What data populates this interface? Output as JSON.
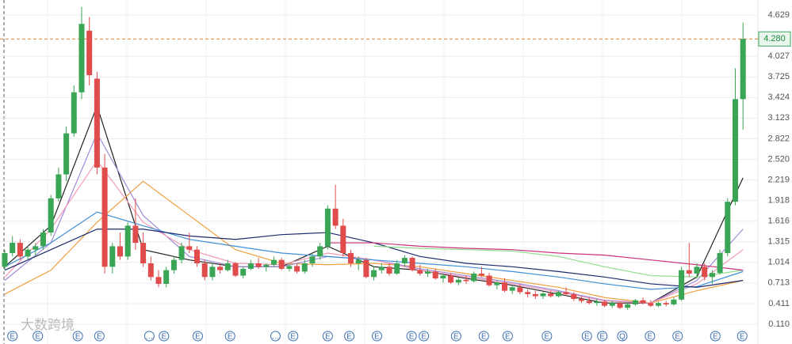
{
  "chart_data": {
    "type": "candlestick",
    "ylim": [
      -0.179,
      4.849
    ],
    "yticks": [
      4.629,
      4.027,
      3.725,
      3.424,
      3.123,
      2.822,
      {
        "value": 2.52,
        "label": "2.520"
      },
      2.219,
      1.918,
      1.616,
      1.315,
      1.014,
      0.713,
      0.411,
      {
        "value": 0.11,
        "label": "0.110"
      }
    ],
    "grid": true,
    "up_color": "#3aa655",
    "down_color": "#e04b4b",
    "last_price": {
      "value": 4.28,
      "label": "4.280"
    },
    "candles": [
      [
        0.95,
        1.2,
        0.9,
        1.15
      ],
      [
        1.15,
        1.4,
        1.1,
        1.3
      ],
      [
        1.3,
        1.35,
        1.05,
        1.1
      ],
      [
        1.1,
        1.25,
        1.05,
        1.2
      ],
      [
        1.2,
        1.3,
        1.1,
        1.25
      ],
      [
        1.25,
        1.5,
        1.2,
        1.45
      ],
      [
        1.45,
        2.0,
        1.4,
        1.95
      ],
      [
        1.95,
        2.4,
        1.9,
        2.3
      ],
      [
        2.3,
        3.0,
        2.2,
        2.9
      ],
      [
        2.9,
        3.6,
        2.85,
        3.5
      ],
      [
        3.5,
        4.75,
        3.4,
        4.5
      ],
      [
        4.4,
        4.6,
        3.6,
        3.75
      ],
      [
        3.7,
        3.8,
        2.3,
        2.4
      ],
      [
        2.4,
        2.6,
        0.85,
        0.95
      ],
      [
        0.95,
        1.3,
        0.85,
        1.25
      ],
      [
        1.25,
        1.45,
        1.05,
        1.1
      ],
      [
        1.1,
        1.6,
        1.05,
        1.55
      ],
      [
        1.55,
        1.95,
        1.2,
        1.3
      ],
      [
        1.3,
        1.45,
        0.95,
        1.0
      ],
      [
        1.0,
        1.1,
        0.75,
        0.8
      ],
      [
        0.8,
        0.9,
        0.65,
        0.7
      ],
      [
        0.7,
        0.95,
        0.65,
        0.9
      ],
      [
        0.9,
        1.1,
        0.85,
        1.05
      ],
      [
        1.05,
        1.3,
        1.0,
        1.25
      ],
      [
        1.25,
        1.45,
        1.15,
        1.2
      ],
      [
        1.2,
        1.25,
        0.95,
        1.0
      ],
      [
        1.0,
        1.05,
        0.75,
        0.8
      ],
      [
        0.8,
        1.0,
        0.75,
        0.95
      ],
      [
        0.95,
        1.0,
        0.85,
        0.9
      ],
      [
        0.9,
        1.05,
        0.88,
        1.0
      ],
      [
        1.0,
        1.02,
        0.8,
        0.82
      ],
      [
        0.82,
        0.95,
        0.78,
        0.92
      ],
      [
        0.92,
        1.05,
        0.9,
        1.0
      ],
      [
        1.0,
        1.08,
        0.92,
        0.95
      ],
      [
        0.95,
        1.0,
        0.88,
        0.98
      ],
      [
        0.98,
        1.1,
        0.95,
        1.05
      ],
      [
        1.05,
        1.08,
        0.9,
        0.92
      ],
      [
        0.92,
        1.0,
        0.88,
        0.96
      ],
      [
        0.96,
        1.0,
        0.85,
        0.88
      ],
      [
        0.88,
        1.05,
        0.85,
        1.0
      ],
      [
        1.0,
        1.15,
        0.95,
        1.1
      ],
      [
        1.1,
        1.3,
        1.05,
        1.25
      ],
      [
        1.25,
        1.85,
        1.2,
        1.8
      ],
      [
        1.8,
        2.15,
        1.5,
        1.55
      ],
      [
        1.55,
        1.65,
        1.1,
        1.15
      ],
      [
        1.15,
        1.2,
        0.95,
        1.0
      ],
      [
        1.0,
        1.1,
        0.9,
        1.05
      ],
      [
        1.05,
        1.08,
        0.78,
        0.8
      ],
      [
        0.8,
        0.95,
        0.75,
        0.9
      ],
      [
        0.9,
        1.0,
        0.85,
        0.95
      ],
      [
        0.95,
        1.0,
        0.82,
        0.85
      ],
      [
        0.85,
        1.05,
        0.83,
        1.0
      ],
      [
        1.0,
        1.12,
        0.95,
        1.08
      ],
      [
        1.08,
        1.1,
        0.88,
        0.9
      ],
      [
        0.9,
        0.98,
        0.82,
        0.85
      ],
      [
        0.85,
        0.92,
        0.8,
        0.88
      ],
      [
        0.88,
        0.92,
        0.76,
        0.78
      ],
      [
        0.78,
        0.85,
        0.72,
        0.82
      ],
      [
        0.82,
        0.86,
        0.7,
        0.72
      ],
      [
        0.72,
        0.8,
        0.68,
        0.76
      ],
      [
        0.76,
        0.82,
        0.7,
        0.74
      ],
      [
        0.74,
        0.88,
        0.72,
        0.85
      ],
      [
        0.85,
        0.95,
        0.8,
        0.82
      ],
      [
        0.82,
        0.86,
        0.66,
        0.68
      ],
      [
        0.68,
        0.75,
        0.62,
        0.72
      ],
      [
        0.72,
        0.78,
        0.58,
        0.6
      ],
      [
        0.6,
        0.68,
        0.55,
        0.65
      ],
      [
        0.65,
        0.7,
        0.55,
        0.58
      ],
      [
        0.58,
        0.62,
        0.5,
        0.55
      ],
      [
        0.55,
        0.6,
        0.48,
        0.52
      ],
      [
        0.52,
        0.58,
        0.48,
        0.56
      ],
      [
        0.56,
        0.6,
        0.5,
        0.52
      ],
      [
        0.52,
        0.6,
        0.5,
        0.58
      ],
      [
        0.58,
        0.65,
        0.52,
        0.55
      ],
      [
        0.55,
        0.58,
        0.45,
        0.48
      ],
      [
        0.48,
        0.52,
        0.42,
        0.45
      ],
      [
        0.45,
        0.5,
        0.4,
        0.42
      ],
      [
        0.42,
        0.48,
        0.38,
        0.44
      ],
      [
        0.44,
        0.47,
        0.36,
        0.38
      ],
      [
        0.38,
        0.45,
        0.35,
        0.42
      ],
      [
        0.42,
        0.44,
        0.33,
        0.35
      ],
      [
        0.35,
        0.42,
        0.32,
        0.4
      ],
      [
        0.4,
        0.48,
        0.38,
        0.46
      ],
      [
        0.46,
        0.5,
        0.4,
        0.42
      ],
      [
        0.42,
        0.46,
        0.36,
        0.38
      ],
      [
        0.38,
        0.44,
        0.36,
        0.42
      ],
      [
        0.42,
        0.45,
        0.37,
        0.4
      ],
      [
        0.4,
        0.5,
        0.38,
        0.47
      ],
      [
        0.47,
        0.95,
        0.45,
        0.9
      ],
      [
        0.9,
        1.3,
        0.8,
        0.85
      ],
      [
        0.85,
        1.0,
        0.78,
        0.95
      ],
      [
        0.95,
        1.0,
        0.75,
        0.8
      ],
      [
        0.8,
        0.9,
        0.7,
        0.86
      ],
      [
        0.86,
        1.2,
        0.84,
        1.15
      ],
      [
        1.15,
        1.95,
        1.1,
        1.9
      ],
      [
        1.9,
        3.85,
        1.85,
        3.4
      ],
      [
        3.4,
        4.52,
        2.95,
        4.28
      ]
    ],
    "line_x": [
      0,
      6,
      12,
      18,
      24,
      30,
      36,
      42,
      48,
      54,
      60,
      66,
      72,
      78,
      84,
      90,
      96
    ],
    "series": [
      {
        "color": "#222222",
        "values": [
          0.95,
          1.55,
          3.3,
          1.2,
          1.05,
          0.95,
          0.95,
          1.25,
          0.95,
          0.9,
          0.78,
          0.68,
          0.55,
          0.42,
          0.42,
          0.8,
          2.25
        ]
      },
      {
        "color": "#f0a040",
        "values": [
          0.55,
          0.9,
          1.6,
          2.2,
          1.7,
          1.2,
          1.0,
          0.98,
          1.0,
          0.95,
          0.85,
          0.75,
          0.65,
          0.5,
          0.42,
          0.6,
          0.75
        ]
      },
      {
        "color": "#a08ad8",
        "values": [
          0.75,
          1.3,
          2.9,
          1.7,
          1.1,
          0.95,
          0.95,
          1.1,
          1.05,
          0.92,
          0.82,
          0.72,
          0.6,
          0.46,
          0.42,
          0.75,
          1.5
        ]
      },
      {
        "color": "#f39ab8",
        "values": [
          0.8,
          1.5,
          2.5,
          1.6,
          1.2,
          1.0,
          0.98,
          1.15,
          1.05,
          0.9,
          0.8,
          0.7,
          0.58,
          0.45,
          0.42,
          0.7,
          1.2
        ]
      },
      {
        "color": "#3d8fd6",
        "values": [
          0.95,
          1.3,
          1.75,
          1.55,
          1.35,
          1.25,
          1.15,
          1.1,
          1.05,
          1.0,
          0.95,
          0.88,
          0.8,
          0.7,
          0.62,
          0.66,
          0.88
        ]
      },
      {
        "color": "#1f2a6b",
        "values": [
          0.9,
          1.2,
          1.5,
          1.5,
          1.4,
          1.35,
          1.42,
          1.45,
          1.3,
          1.1,
          1.0,
          0.95,
          0.88,
          0.8,
          0.7,
          0.65,
          0.75
        ]
      },
      {
        "color": "#8fdc8f",
        "values": [
          null,
          null,
          null,
          null,
          null,
          null,
          null,
          null,
          1.25,
          1.22,
          1.2,
          1.18,
          1.1,
          0.95,
          0.82,
          0.8,
          0.9
        ]
      },
      {
        "color": "#c8327a",
        "values": [
          null,
          null,
          null,
          null,
          null,
          null,
          null,
          1.3,
          1.3,
          1.25,
          1.22,
          1.2,
          1.15,
          1.12,
          1.05,
          0.98,
          0.9
        ]
      }
    ],
    "events": [
      {
        "x": 1,
        "label": "E"
      },
      {
        "x": 4.3,
        "label": "E"
      },
      {
        "x": 9.5,
        "label": "E"
      },
      {
        "x": 12.3,
        "label": "E"
      },
      {
        "x": 18.8,
        "label": "…"
      },
      {
        "x": 20.7,
        "label": "E"
      },
      {
        "x": 25.1,
        "label": "E"
      },
      {
        "x": 29.3,
        "label": "E"
      },
      {
        "x": 35.2,
        "label": "…"
      },
      {
        "x": 37.5,
        "label": "E"
      },
      {
        "x": 42,
        "label": "E"
      },
      {
        "x": 44.8,
        "label": "E"
      },
      {
        "x": 48.4,
        "label": "E"
      },
      {
        "x": 52.9,
        "label": "E"
      },
      {
        "x": 54.5,
        "label": "E"
      },
      {
        "x": 58.7,
        "label": "E"
      },
      {
        "x": 62.3,
        "label": "E"
      },
      {
        "x": 65.4,
        "label": "E"
      },
      {
        "x": 70.5,
        "label": "E"
      },
      {
        "x": 75.7,
        "label": "E"
      },
      {
        "x": 77.7,
        "label": "E"
      },
      {
        "x": 80.3,
        "label": "Q"
      },
      {
        "x": 83.9,
        "label": "E"
      },
      {
        "x": 87.5,
        "label": "E"
      },
      {
        "x": 92.4,
        "label": "E"
      },
      {
        "x": 95.9,
        "label": "E"
      }
    ],
    "watermark": "大数跨境"
  }
}
